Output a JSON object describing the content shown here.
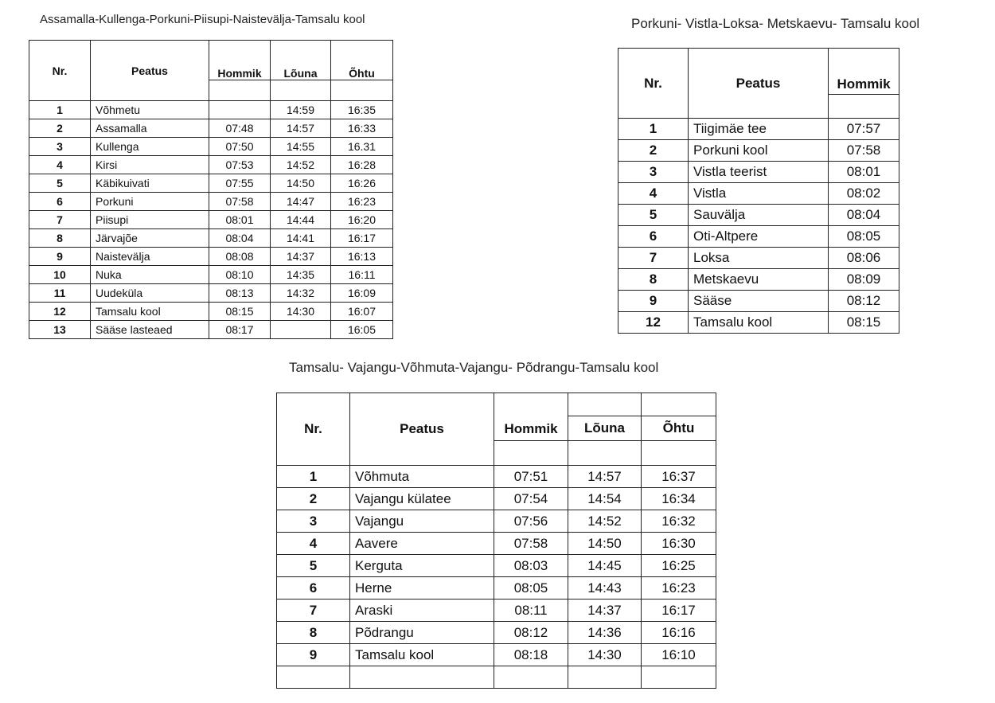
{
  "tables": [
    {
      "title": "Assamalla-Kullenga-Porkuni-Piisupi-Naistevälja-Tamsalu kool",
      "headers": {
        "nr": "Nr.",
        "stop": "Peatus",
        "morning": "Hommik",
        "noon": "Lõuna",
        "evening": "Õhtu"
      },
      "rows": [
        [
          "1",
          "Võhmetu",
          "",
          "14:59",
          "16:35"
        ],
        [
          "2",
          "Assamalla",
          "07:48",
          "14:57",
          "16:33"
        ],
        [
          "3",
          "Kullenga",
          "07:50",
          "14:55",
          "16.31"
        ],
        [
          "4",
          "Kirsi",
          "07:53",
          "14:52",
          "16:28"
        ],
        [
          "5",
          "Käbikuivati",
          "07:55",
          "14:50",
          "16:26"
        ],
        [
          "6",
          "Porkuni",
          "07:58",
          "14:47",
          "16:23"
        ],
        [
          "7",
          "Piisupi",
          "08:01",
          "14:44",
          "16:20"
        ],
        [
          "8",
          "Järvajõe",
          "08:04",
          "14:41",
          "16:17"
        ],
        [
          "9",
          "Naistevälja",
          "08:08",
          "14:37",
          "16:13"
        ],
        [
          "10",
          "Nuka",
          "08:10",
          "14:35",
          "16:11"
        ],
        [
          "11",
          "Uudeküla",
          "08:13",
          "14:32",
          "16:09"
        ],
        [
          "12",
          "Tamsalu kool",
          "08:15",
          "14:30",
          "16:07"
        ],
        [
          "13",
          "Sääse lasteaed",
          "08:17",
          "",
          "16:05"
        ]
      ]
    },
    {
      "title": "Porkuni- Vistla-Loksa- Metskaevu- Tamsalu kool",
      "headers": {
        "nr": "Nr.",
        "stop": "Peatus",
        "morning": "Hommik"
      },
      "rows": [
        [
          "1",
          "Tiigimäe tee",
          "07:57"
        ],
        [
          "2",
          "Porkuni kool",
          "07:58"
        ],
        [
          "3",
          "Vistla teerist",
          "08:01"
        ],
        [
          "4",
          "Vistla",
          "08:02"
        ],
        [
          "5",
          "Sauvälja",
          "08:04"
        ],
        [
          "6",
          "Oti-Altpere",
          "08:05"
        ],
        [
          "7",
          "Loksa",
          "08:06"
        ],
        [
          "8",
          "Metskaevu",
          "08:09"
        ],
        [
          "9",
          "Sääse",
          "08:12"
        ],
        [
          "12",
          "Tamsalu kool",
          "08:15"
        ]
      ]
    },
    {
      "title": "Tamsalu- Vajangu-Võhmuta-Vajangu- Põdrangu-Tamsalu kool",
      "headers": {
        "nr": "Nr.",
        "stop": "Peatus",
        "morning": "Hommik",
        "noon": "Lõuna",
        "evening": "Õhtu"
      },
      "rows": [
        [
          "1",
          "Võhmuta",
          "07:51",
          "14:57",
          "16:37"
        ],
        [
          "2",
          "Vajangu külatee",
          "07:54",
          "14:54",
          "16:34"
        ],
        [
          "3",
          "Vajangu",
          "07:56",
          "14:52",
          "16:32"
        ],
        [
          "4",
          "Aavere",
          "07:58",
          "14:50",
          "16:30"
        ],
        [
          "5",
          "Kerguta",
          "08:03",
          "14:45",
          "16:25"
        ],
        [
          "6",
          "Herne",
          "08:05",
          "14:43",
          "16:23"
        ],
        [
          "7",
          "Araski",
          "08:11",
          "14:37",
          "16:17"
        ],
        [
          "8",
          "Põdrangu",
          "08:12",
          "14:36",
          "16:16"
        ],
        [
          "9",
          "Tamsalu kool",
          "08:18",
          "14:30",
          "16:10"
        ],
        [
          "",
          "",
          "",
          "",
          ""
        ]
      ]
    }
  ]
}
